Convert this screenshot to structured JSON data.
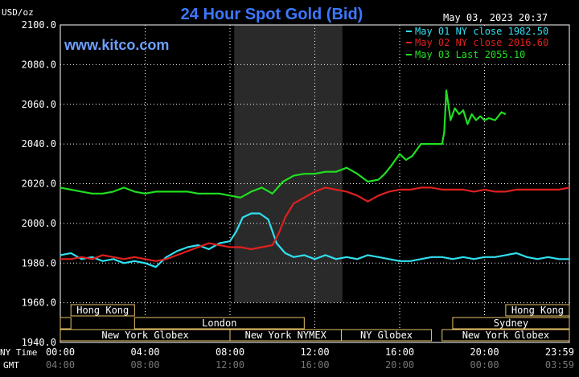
{
  "header": {
    "title": "24 Hour Spot Gold (Bid)",
    "units": "USD/oz",
    "timestamp": "May 03, 2023 20:37",
    "watermark": "www.kitco.com"
  },
  "colors": {
    "background": "#000000",
    "grid": "#ffffff",
    "title": "#3c78ff",
    "watermark": "#6ea0ff",
    "may01": "#30e0f0",
    "may02": "#e02020",
    "may03": "#20e020",
    "session_border": "#e8c46a",
    "nymex_shade": "#2a2a2a"
  },
  "legend": [
    {
      "label": "May 01 NY close 1982.50",
      "color": "#30e0f0"
    },
    {
      "label": "May 02 NY close 2016.60",
      "color": "#e02020"
    },
    {
      "label": "May 03 Last 2055.10",
      "color": "#20e020"
    }
  ],
  "sessions": {
    "row1": [
      {
        "label": "Hong Kong",
        "start": 0.5,
        "end": 3.5
      },
      {
        "label": "Hong Kong",
        "start": 21.0,
        "end": 24.0
      }
    ],
    "row2": [
      {
        "label": "",
        "start": 0.0,
        "end": 0.5
      },
      {
        "label": "London",
        "start": 3.5,
        "end": 11.5
      },
      {
        "label": "Sydney",
        "start": 18.5,
        "end": 24.0
      }
    ],
    "row3": [
      {
        "label": "New York Globex",
        "start": 0.0,
        "end": 8.0
      },
      {
        "label": "New York NYMEX",
        "start": 8.0,
        "end": 13.25
      },
      {
        "label": "NY Globex",
        "start": 13.25,
        "end": 17.5
      },
      {
        "label": "New York Globex",
        "start": 18.0,
        "end": 24.0
      }
    ]
  },
  "axis_labels": {
    "ny_time": "NY Time",
    "gmt": "GMT"
  },
  "chart_data": {
    "type": "line",
    "title": "24 Hour Spot Gold (Bid)",
    "ylabel": "USD/oz",
    "xlabel": "",
    "ylim": [
      1940,
      2100
    ],
    "xlim": [
      0,
      24
    ],
    "yticks": [
      1940,
      1960,
      1980,
      2000,
      2020,
      2040,
      2060,
      2080,
      2100
    ],
    "ytick_labels": [
      "1940.0",
      "1960.0",
      "1980.0",
      "2000.0",
      "2020.0",
      "2040.0",
      "2060.0",
      "2080.0",
      "2100.0"
    ],
    "xticks_ny": [
      "00:00",
      "04:00",
      "08:00",
      "12:00",
      "16:00",
      "20:00",
      "23:59"
    ],
    "xticks_gmt": [
      "04:00",
      "08:00",
      "12:00",
      "16:00",
      "20:00",
      "00:00",
      "03:59"
    ],
    "grid": true,
    "legend_position": "top-right",
    "shaded_region": {
      "label": "New York NYMEX",
      "start": 8.2,
      "end": 13.3
    },
    "series": [
      {
        "name": "May 01 NY close 1982.50",
        "color": "#30e0f0",
        "x": [
          0,
          0.5,
          1.0,
          1.5,
          2.0,
          2.5,
          3.0,
          3.5,
          4.0,
          4.5,
          5.0,
          5.5,
          6.0,
          6.5,
          7.0,
          7.5,
          8.0,
          8.3,
          8.6,
          9.0,
          9.4,
          9.8,
          10.2,
          10.6,
          11.0,
          11.5,
          12.0,
          12.5,
          13.0,
          13.5,
          14.0,
          14.5,
          15.0,
          15.5,
          16.0,
          16.5,
          17.0,
          17.5,
          18.0,
          18.5,
          19.0,
          19.5,
          20.0,
          20.5,
          21.0,
          21.5,
          22.0,
          22.5,
          23.0,
          23.5,
          24.0
        ],
        "y": [
          1984,
          1985,
          1982,
          1983,
          1981,
          1982,
          1980,
          1981,
          1980,
          1978,
          1983,
          1986,
          1988,
          1989,
          1987,
          1990,
          1991,
          1996,
          2003,
          2005,
          2005,
          2002,
          1990,
          1985,
          1983,
          1984,
          1982,
          1984,
          1982,
          1983,
          1982,
          1984,
          1983,
          1982,
          1981,
          1981,
          1982,
          1983,
          1983,
          1982,
          1983,
          1982,
          1983,
          1983,
          1984,
          1985,
          1983,
          1982,
          1983,
          1982,
          1982
        ]
      },
      {
        "name": "May 02 NY close 2016.60",
        "color": "#e02020",
        "x": [
          0,
          0.5,
          1.0,
          1.5,
          2.0,
          2.5,
          3.0,
          3.5,
          4.0,
          4.5,
          5.0,
          5.5,
          6.0,
          6.5,
          7.0,
          7.5,
          8.0,
          8.5,
          9.0,
          9.5,
          10.0,
          10.3,
          10.6,
          11.0,
          11.5,
          12.0,
          12.5,
          13.0,
          13.5,
          14.0,
          14.5,
          15.0,
          15.5,
          16.0,
          16.5,
          17.0,
          17.5,
          18.0,
          18.5,
          19.0,
          19.5,
          20.0,
          20.5,
          21.0,
          21.5,
          22.0,
          22.5,
          23.0,
          23.5,
          24.0
        ],
        "y": [
          1982,
          1982,
          1983,
          1982,
          1984,
          1983,
          1982,
          1983,
          1982,
          1981,
          1982,
          1984,
          1986,
          1988,
          1990,
          1989,
          1988,
          1988,
          1987,
          1988,
          1989,
          1995,
          2003,
          2010,
          2013,
          2016,
          2018,
          2017,
          2016,
          2014,
          2011,
          2014,
          2016,
          2017,
          2017,
          2018,
          2018,
          2017,
          2017,
          2017,
          2016,
          2017,
          2016,
          2016,
          2017,
          2017,
          2017,
          2017,
          2017,
          2018
        ]
      },
      {
        "name": "May 03 Last 2055.10",
        "color": "#20e020",
        "x": [
          0,
          0.5,
          1.0,
          1.5,
          2.0,
          2.5,
          3.0,
          3.5,
          4.0,
          4.5,
          5.0,
          5.5,
          6.0,
          6.5,
          7.0,
          7.5,
          8.0,
          8.5,
          9.0,
          9.5,
          10.0,
          10.5,
          11.0,
          11.5,
          12.0,
          12.5,
          13.0,
          13.5,
          14.0,
          14.5,
          15.0,
          15.3,
          15.6,
          16.0,
          16.3,
          16.6,
          17.0,
          17.5,
          18.0,
          18.1,
          18.2,
          18.4,
          18.6,
          18.8,
          19.0,
          19.2,
          19.4,
          19.6,
          19.8,
          20.0,
          20.2,
          20.5,
          20.8,
          21.0
        ],
        "y": [
          2018,
          2017,
          2016,
          2015,
          2015,
          2016,
          2018,
          2016,
          2015,
          2016,
          2016,
          2016,
          2016,
          2015,
          2015,
          2015,
          2014,
          2013,
          2016,
          2018,
          2015,
          2021,
          2024,
          2025,
          2025,
          2026,
          2026,
          2028,
          2025,
          2021,
          2022,
          2025,
          2029,
          2035,
          2032,
          2034,
          2040,
          2040,
          2040,
          2046,
          2067,
          2052,
          2058,
          2055,
          2057,
          2050,
          2055,
          2052,
          2054,
          2052,
          2053,
          2052,
          2056,
          2055
        ]
      }
    ]
  }
}
